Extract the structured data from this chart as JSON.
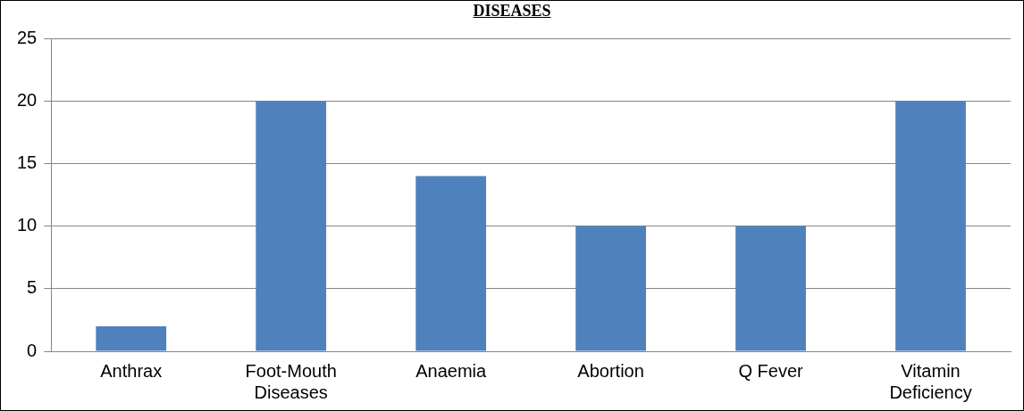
{
  "chart_data": {
    "type": "bar",
    "title": "DISEASES",
    "categories": [
      "Anthrax",
      "Foot-Mouth Diseases",
      "Anaemia",
      "Abortion",
      "Q Fever",
      "Vitamin Deficiency"
    ],
    "values": [
      2,
      20,
      14,
      10,
      10,
      20
    ],
    "color": "#4f81bd",
    "ylim": [
      0,
      25
    ],
    "yticks": [
      0,
      5,
      10,
      15,
      20,
      25
    ],
    "grid": "y"
  }
}
